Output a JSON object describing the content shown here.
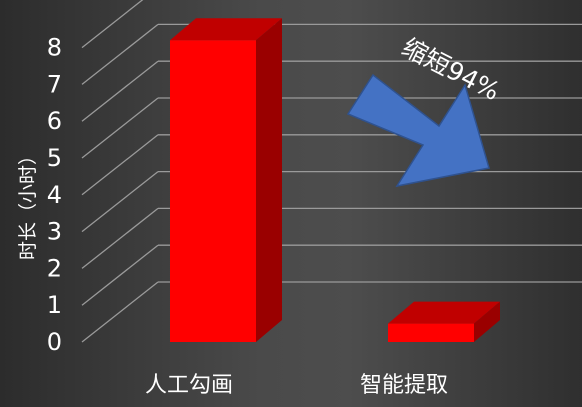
{
  "chart_data": {
    "type": "bar",
    "style": "3d-column",
    "categories": [
      "人工勾画",
      "智能提取"
    ],
    "values": [
      8.2,
      0.5
    ],
    "ylabel": "时长（小时）",
    "xlabel": "",
    "ylim": [
      0,
      8
    ],
    "yticks": [
      "0",
      "1",
      "2",
      "3",
      "4",
      "5",
      "6",
      "7",
      "8"
    ],
    "grid": true,
    "bar_color": "#ff0000",
    "annotation": {
      "text": "缩短94%",
      "arrow_color": "#4472c4",
      "arrow_direction": "down-right"
    }
  }
}
